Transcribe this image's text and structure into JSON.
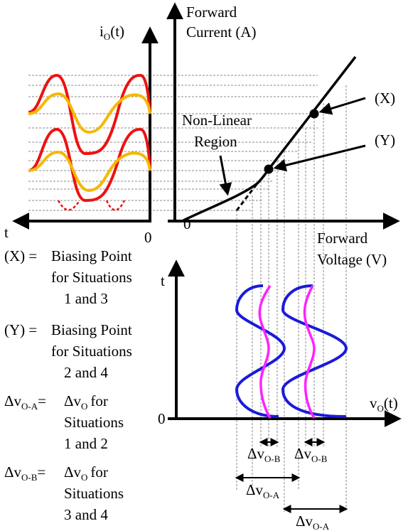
{
  "labels": {
    "io_axis": "i",
    "io_axis_sub": "O",
    "io_axis_suffix": "(t)",
    "t_left": "t",
    "zero_left": "0",
    "zero_origin": "0",
    "forward_current_1": "Forward",
    "forward_current_2": "Current (A)",
    "non_linear_1": "Non-Linear",
    "non_linear_2": "Region",
    "point_x": "(X)",
    "point_y": "(Y)",
    "forward_voltage_1": "Forward",
    "forward_voltage_2": "Voltage (V)",
    "t_bottom": "t",
    "zero_bottom": "0",
    "vo_axis": "v",
    "vo_axis_sub": "O",
    "vo_axis_suffix": "(t)",
    "delta": "Δv",
    "sub_ob": "O-B",
    "sub_oa": "O-A"
  },
  "legend": {
    "x_key": "(X) =",
    "x_line1": "Biasing Point",
    "x_line2": "for Situations",
    "x_line3": "1 and 3",
    "y_key": "(Y) =",
    "y_line1": "Biasing Point",
    "y_line2": "for Situations",
    "y_line3": "2 and 4",
    "oa_key_delta": "Δv",
    "oa_key_sub": "O-A",
    "oa_eq": "=",
    "oa_line1_delta": "Δv",
    "oa_line1_sub": "O",
    "oa_line1_rest": "for",
    "oa_line2": "Situations",
    "oa_line3": "1 and 2",
    "ob_key_delta": "Δv",
    "ob_key_sub": "O-B",
    "ob_eq": "=",
    "ob_line1_delta": "Δv",
    "ob_line1_sub": "O",
    "ob_line1_rest": "for",
    "ob_line2": "Situations",
    "ob_line3": "3 and 4"
  },
  "colors": {
    "red": "#ee1111",
    "orange": "#f5b800",
    "blue": "#1a1adb",
    "magenta": "#ff22ff",
    "grid": "#8a8a8a",
    "ink": "#000000"
  }
}
